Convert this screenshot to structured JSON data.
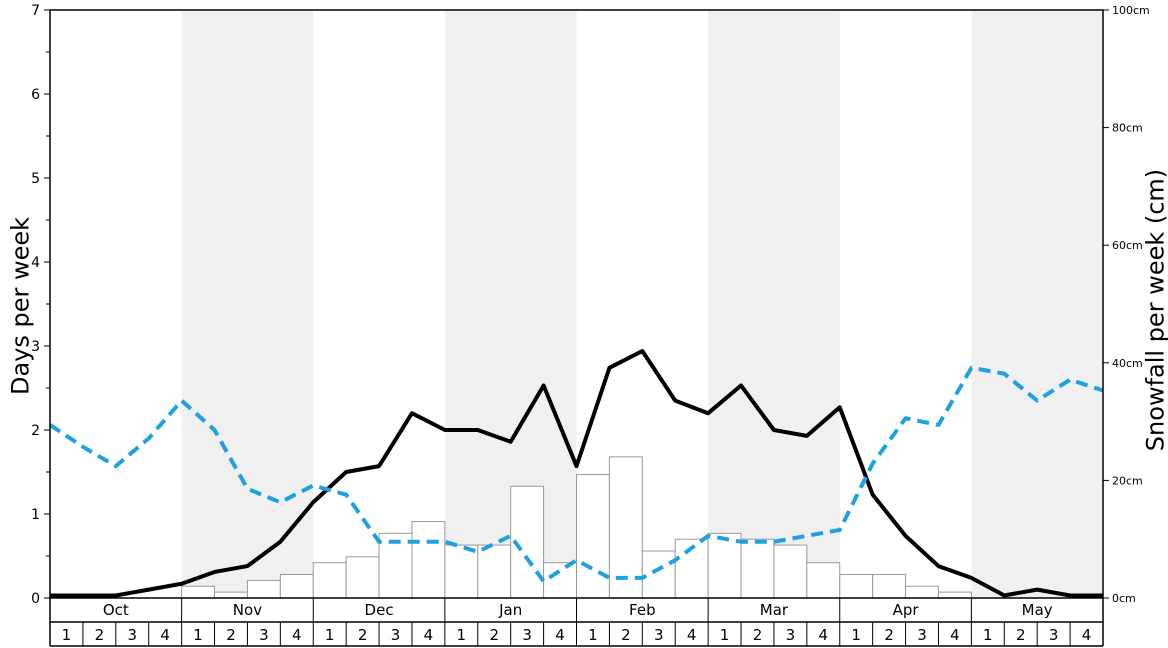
{
  "chart_data": {
    "type": "bar",
    "months": [
      "Oct",
      "Nov",
      "Dec",
      "Jan",
      "Feb",
      "Mar",
      "Apr",
      "May"
    ],
    "weeks": [
      "1",
      "2",
      "3",
      "4"
    ],
    "ylabel_left": "Days per week",
    "ylabel_right": "Snowfall per week (cm)",
    "ylim_left": [
      0,
      7
    ],
    "yticks_left": [
      "0",
      "1",
      "2",
      "3",
      "4",
      "5",
      "6",
      "7"
    ],
    "ylim_right": [
      0,
      100
    ],
    "yticks_right": [
      "0cm",
      "20cm",
      "40cm",
      "60cm",
      "80cm",
      "100cm"
    ],
    "shaded_months": [
      "Nov",
      "Jan",
      "Mar",
      "May"
    ],
    "series": [
      {
        "kind": "bar",
        "axis": "right",
        "values": [
          0,
          0,
          0,
          0,
          2,
          1,
          3,
          4,
          6,
          7,
          11,
          13,
          9,
          9,
          19,
          6,
          21,
          24,
          8,
          10,
          11,
          10,
          9,
          6,
          4,
          4,
          2,
          1,
          0,
          0,
          0,
          0
        ],
        "color": "#ffffff",
        "stroke": "#999999"
      },
      {
        "kind": "line",
        "axis": "left",
        "style": "solid",
        "color": "#000000",
        "values": [
          0.03,
          0.03,
          0.03,
          0.1,
          0.17,
          0.31,
          0.38,
          0.67,
          1.14,
          1.5,
          1.57,
          2.2,
          2.0,
          2.0,
          1.86,
          2.53,
          1.57,
          2.74,
          2.94,
          2.35,
          2.2,
          2.53,
          2.0,
          1.93,
          2.27,
          1.23,
          0.74,
          0.38,
          0.24,
          0.03,
          0.1,
          0.03,
          0.03
        ]
      },
      {
        "kind": "line",
        "axis": "left",
        "style": "dashed",
        "color": "#1fa0e0",
        "values": [
          2.06,
          1.8,
          1.57,
          1.9,
          2.35,
          2.0,
          1.3,
          1.14,
          1.34,
          1.23,
          0.67,
          0.67,
          0.67,
          0.55,
          0.74,
          0.2,
          0.45,
          0.24,
          0.24,
          0.45,
          0.74,
          0.67,
          0.67,
          0.74,
          0.81,
          1.6,
          2.14,
          2.06,
          2.74,
          2.67,
          2.35,
          2.6,
          2.47
        ]
      }
    ]
  }
}
